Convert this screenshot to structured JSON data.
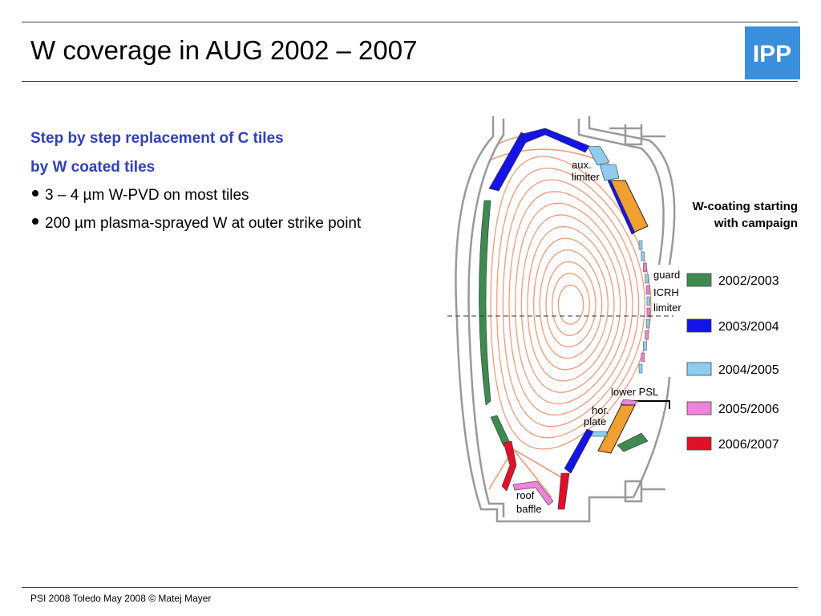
{
  "slide": {
    "title": "W coverage in AUG 2002 – 2007",
    "logo_text": "IPP",
    "heading_line1": "Step by step replacement of C tiles",
    "heading_line2": "by W coated tiles",
    "bullets": [
      "3 – 4 µm W-PVD on most tiles",
      "200 µm plasma-sprayed W at outer strike point"
    ],
    "footer": "PSI 2008 Toledo May 2008 © Matej Mayer"
  },
  "diagram": {
    "labels": {
      "aux_limiter_1": "aux.",
      "aux_limiter_2": "limiter",
      "guard": "guard",
      "icrh": "ICRH",
      "icrh_limiter": "limiter",
      "lower_psl": "lower PSL",
      "hor_plate_1": "hor.",
      "hor_plate_2": "plate",
      "roof_1": "roof",
      "roof_2": "baffle"
    },
    "campaign_heading_1": "W-coating starting",
    "campaign_heading_2": "with campaign",
    "legend": [
      {
        "label": "2002/2003",
        "color": "#3e8a52"
      },
      {
        "label": "2003/2004",
        "color": "#1414e6"
      },
      {
        "label": "2004/2005",
        "color": "#8ecdf0"
      },
      {
        "label": "2005/2006",
        "color": "#ee82dc"
      },
      {
        "label": "2006/2007",
        "color": "#e0102a"
      }
    ],
    "colors": {
      "vessel": "#999999",
      "flux": "#f29a7a",
      "orange": "#f0a030"
    }
  }
}
